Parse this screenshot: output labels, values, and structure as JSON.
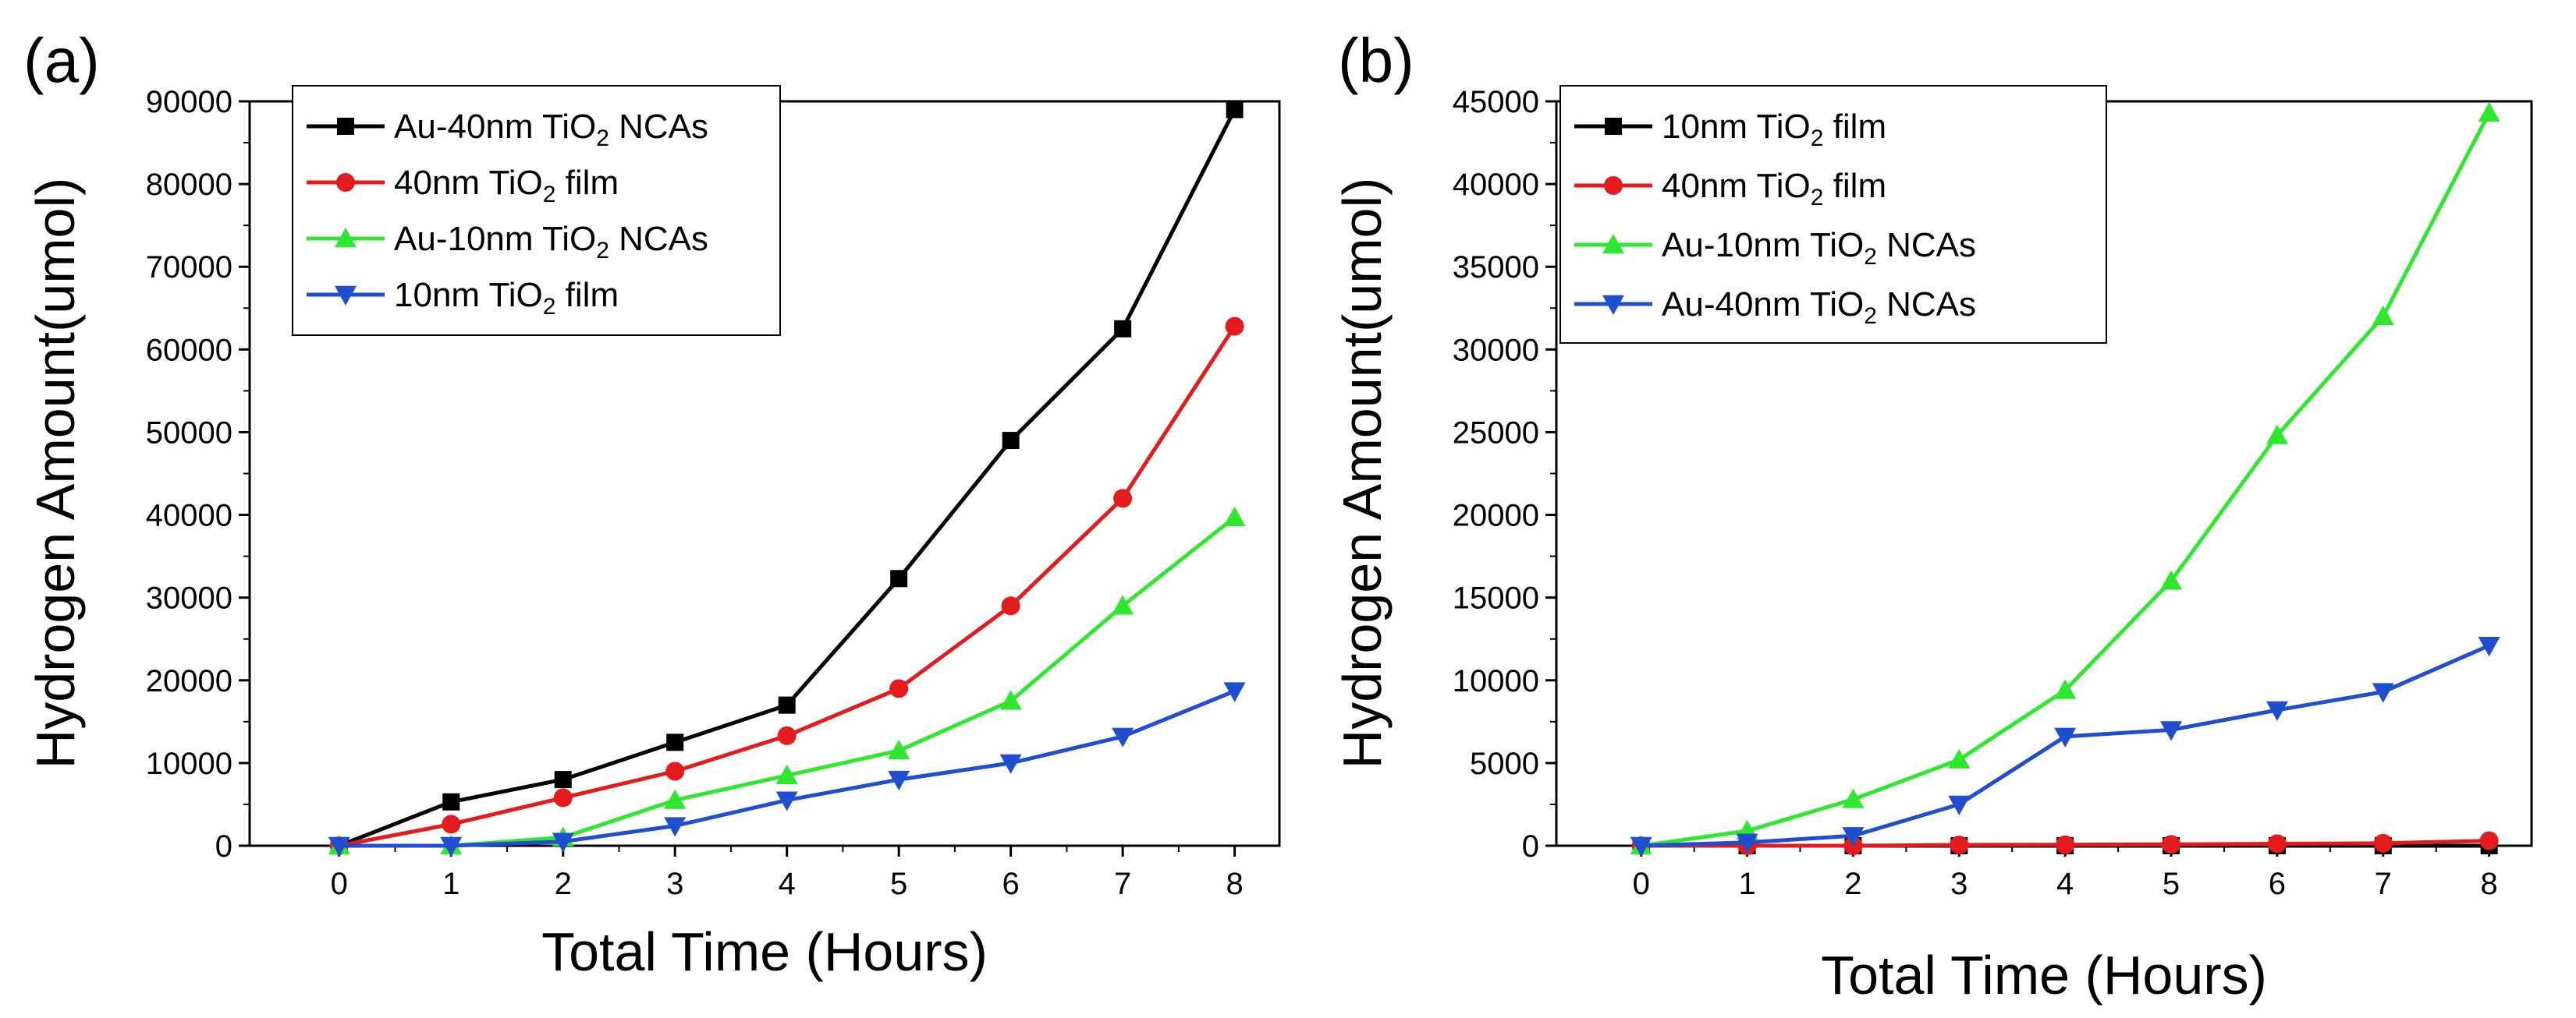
{
  "figure": {
    "panels": [
      "(a)",
      "(b)"
    ]
  },
  "chart_data": [
    {
      "panel_label": "(a)",
      "type": "line",
      "xlabel": "Total Time (Hours)",
      "ylabel": "Hydrogen Amount(umol)",
      "xlim": [
        -0.8,
        8.4
      ],
      "ylim": [
        0,
        90000
      ],
      "xticks": [
        0,
        1,
        2,
        3,
        4,
        5,
        6,
        7,
        8
      ],
      "yticks": [
        0,
        10000,
        20000,
        30000,
        40000,
        50000,
        60000,
        70000,
        80000,
        90000
      ],
      "x": [
        0,
        1,
        2,
        3,
        4,
        5,
        6,
        7,
        8
      ],
      "legend_position": "top-left",
      "series": [
        {
          "name": "Au-40nm TiO2 NCAs",
          "label_pre": "Au-40nm TiO",
          "label_sub": "2",
          "label_post": " NCAs",
          "color": "#000000",
          "marker": "square",
          "values": [
            0,
            5300,
            8000,
            12500,
            17000,
            32300,
            49000,
            62500,
            89000
          ]
        },
        {
          "name": "40nm TiO2 film",
          "label_pre": "40nm TiO",
          "label_sub": "2",
          "label_post": " film",
          "color": "#e41a1c",
          "marker": "circle",
          "values": [
            0,
            2600,
            5800,
            9000,
            13300,
            19000,
            29000,
            42000,
            62800
          ]
        },
        {
          "name": "Au-10nm TiO2 NCAs",
          "label_pre": "Au-10nm TiO",
          "label_sub": "2",
          "label_post": " NCAs",
          "color": "#2ee82e",
          "marker": "triangle-up",
          "values": [
            0,
            0,
            1000,
            5500,
            8500,
            11500,
            17500,
            29000,
            39700
          ]
        },
        {
          "name": "10nm TiO2 film",
          "label_pre": "10nm TiO",
          "label_sub": "2",
          "label_post": " film",
          "color": "#1f4fd0",
          "marker": "triangle-down",
          "values": [
            0,
            0,
            500,
            2400,
            5500,
            8000,
            10000,
            13200,
            18700
          ]
        }
      ]
    },
    {
      "panel_label": "(b)",
      "type": "line",
      "xlabel": "Total Time (Hours)",
      "ylabel": "Hydrogen Amount(umol)",
      "xlim": [
        -0.8,
        8.4
      ],
      "ylim": [
        0,
        45000
      ],
      "xticks": [
        0,
        1,
        2,
        3,
        4,
        5,
        6,
        7,
        8
      ],
      "yticks": [
        0,
        5000,
        10000,
        15000,
        20000,
        25000,
        30000,
        35000,
        40000,
        45000
      ],
      "x": [
        0,
        1,
        2,
        3,
        4,
        5,
        6,
        7,
        8
      ],
      "legend_position": "top-left",
      "series": [
        {
          "name": "10nm TiO2 film",
          "label_pre": "10nm TiO",
          "label_sub": "2",
          "label_post": " film",
          "color": "#000000",
          "marker": "square",
          "values": [
            0,
            0,
            0,
            0,
            0,
            0,
            0,
            0,
            0
          ]
        },
        {
          "name": "40nm TiO2 film",
          "label_pre": "40nm TiO",
          "label_sub": "2",
          "label_post": " film",
          "color": "#e41a1c",
          "marker": "circle",
          "values": [
            0,
            0,
            0,
            50,
            60,
            80,
            120,
            150,
            300
          ]
        },
        {
          "name": "Au-10nm TiO2 NCAs",
          "label_pre": "Au-10nm TiO",
          "label_sub": "2",
          "label_post": " NCAs",
          "color": "#2ee82e",
          "marker": "triangle-up",
          "values": [
            0,
            900,
            2800,
            5200,
            9400,
            16000,
            24800,
            32000,
            44300
          ]
        },
        {
          "name": "Au-40nm TiO2 NCAs",
          "label_pre": "Au-40nm TiO",
          "label_sub": "2",
          "label_post": " NCAs",
          "color": "#1f4fd0",
          "marker": "triangle-down",
          "values": [
            0,
            200,
            600,
            2500,
            6600,
            7000,
            8200,
            9300,
            12100
          ]
        }
      ]
    }
  ]
}
